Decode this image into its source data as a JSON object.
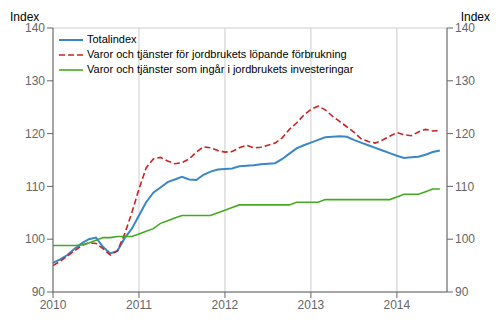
{
  "chart_data": {
    "type": "line",
    "y_label": "Index",
    "y2_label": "Index",
    "x": [
      2010,
      2010.0833333,
      2010.1666667,
      2010.25,
      2010.3333333,
      2010.4166667,
      2010.5,
      2010.5833333,
      2010.6666667,
      2010.75,
      2010.8333333,
      2010.9166667,
      2011,
      2011.0833333,
      2011.1666667,
      2011.25,
      2011.3333333,
      2011.4166667,
      2011.5,
      2011.5833333,
      2011.6666667,
      2011.75,
      2011.8333333,
      2011.9166667,
      2012,
      2012.0833333,
      2012.1666667,
      2012.25,
      2012.3333333,
      2012.4166667,
      2012.5,
      2012.5833333,
      2012.6666667,
      2012.75,
      2012.8333333,
      2012.9166667,
      2013,
      2013.0833333,
      2013.1666667,
      2013.25,
      2013.3333333,
      2013.4166667,
      2013.5,
      2013.5833333,
      2013.6666667,
      2013.75,
      2013.8333333,
      2013.9166667,
      2014,
      2014.0833333,
      2014.1666667,
      2014.25,
      2014.3333333,
      2014.4166667,
      2014.5
    ],
    "xlim": [
      2010.0,
      2014.583
    ],
    "xticks": [
      2010,
      2011,
      2012,
      2013,
      2014
    ],
    "ylim": [
      90,
      140
    ],
    "yticks": [
      90,
      100,
      110,
      120,
      130,
      140
    ],
    "y2lim": [
      90,
      140
    ],
    "y2ticks": [
      90,
      100,
      110,
      120,
      130,
      140
    ],
    "grid": true,
    "legend": "upper left",
    "series": [
      {
        "name": "Totalindex",
        "color": "#3a87c8",
        "line_style": "solid",
        "values": [
          95.5,
          96.2,
          97.0,
          98.2,
          99.2,
          100.0,
          100.3,
          98.5,
          97.3,
          97.8,
          100.2,
          102.0,
          104.5,
          107.0,
          108.8,
          109.8,
          110.8,
          111.3,
          111.8,
          111.3,
          111.2,
          112.2,
          112.8,
          113.2,
          113.3,
          113.4,
          113.8,
          113.9,
          114.0,
          114.2,
          114.3,
          114.4,
          115.2,
          116.2,
          117.2,
          117.8,
          118.3,
          118.8,
          119.3,
          119.4,
          119.5,
          119.4,
          118.8,
          118.3,
          117.8,
          117.3,
          116.8,
          116.3,
          115.8,
          115.4,
          115.5,
          115.6,
          116.0,
          116.5,
          116.8
        ]
      },
      {
        "name": "Varor och tjänster för jordbrukets löpande förbrukning",
        "color": "#cc2222",
        "line_style": "dashed",
        "values": [
          95.0,
          95.8,
          96.8,
          97.8,
          98.8,
          99.3,
          99.2,
          98.2,
          97.0,
          97.8,
          101.0,
          105.0,
          109.5,
          113.5,
          115.2,
          115.5,
          114.8,
          114.3,
          114.5,
          115.2,
          116.5,
          117.5,
          117.3,
          116.8,
          116.5,
          116.6,
          117.3,
          117.8,
          117.3,
          117.4,
          117.8,
          118.2,
          119.2,
          120.8,
          122.0,
          123.5,
          124.6,
          125.2,
          124.5,
          123.3,
          122.3,
          121.3,
          120.3,
          119.0,
          118.5,
          118.2,
          118.8,
          119.5,
          120.2,
          119.8,
          119.6,
          120.3,
          120.8,
          120.5,
          120.6
        ]
      },
      {
        "name": "Varor och tjänster som ingår i jordbrukets investeringar",
        "color": "#44aa22",
        "line_style": "solid",
        "values": [
          98.8,
          98.8,
          98.8,
          98.8,
          98.9,
          99.3,
          99.8,
          100.3,
          100.3,
          100.5,
          100.5,
          100.5,
          101.0,
          101.5,
          102.0,
          103.0,
          103.5,
          104.0,
          104.5,
          104.5,
          104.5,
          104.5,
          104.5,
          105.0,
          105.5,
          106.0,
          106.5,
          106.5,
          106.5,
          106.5,
          106.5,
          106.5,
          106.5,
          106.5,
          107.0,
          107.0,
          107.0,
          107.0,
          107.5,
          107.5,
          107.5,
          107.5,
          107.5,
          107.5,
          107.5,
          107.5,
          107.5,
          107.5,
          108.0,
          108.5,
          108.5,
          108.5,
          109.0,
          109.5,
          109.5
        ]
      }
    ]
  }
}
